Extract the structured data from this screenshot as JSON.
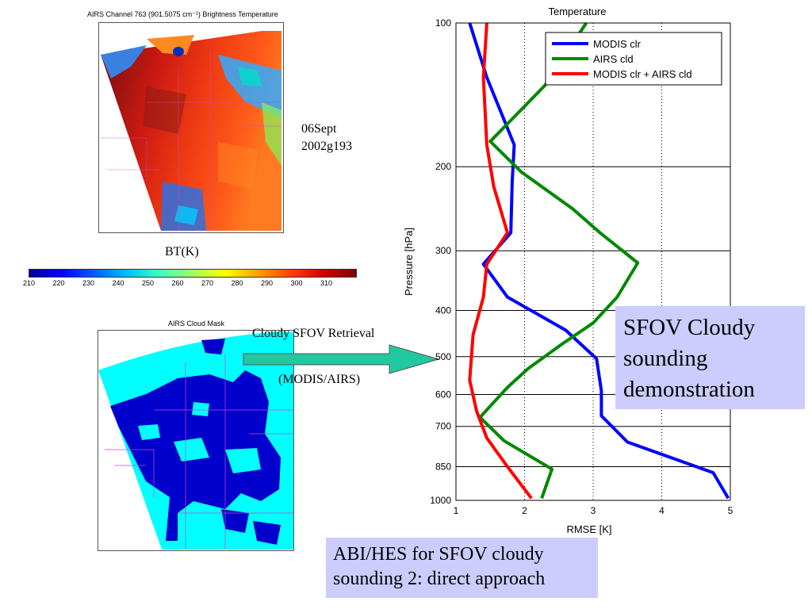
{
  "maps": {
    "bt_title": "AIRS Channel 763 (901.5075 cm⁻¹)   Brightness Temperature",
    "date_line1": "06Sept",
    "date_line2": "2002g193",
    "colorbar_label": "BT(K)",
    "colorbar_ticks": [
      "210",
      "220",
      "230",
      "240",
      "250",
      "260",
      "270",
      "280",
      "290",
      "300",
      "310"
    ],
    "cloud_title": "AIRS Cloud Mask"
  },
  "arrow": {
    "label_top": "Cloudy SFOV Retrieval",
    "label_bottom": "(MODIS/AIRS)"
  },
  "callouts": {
    "right": "SFOV Cloudy sounding demonstration",
    "bottom_line1": "ABI/HES for SFOV cloudy",
    "bottom_line2": "sounding 2: direct approach"
  },
  "colors": {
    "modis_clr": "#0000ff",
    "airs_cld": "#008800",
    "combined": "#ff0000",
    "callout_bg": "#ccccff",
    "arrow_fill": "#22c9a0",
    "cloud_clear": "#00ffff",
    "cloud_cloudy": "#0000cc"
  },
  "chart_data": {
    "type": "line",
    "title": "Temperature",
    "xlabel": "RMSE [K]",
    "ylabel": "Pressure [hPa]",
    "xlim": [
      1,
      5
    ],
    "ylim": [
      100,
      1000
    ],
    "yscale": "log",
    "xticks": [
      1,
      2,
      3,
      4,
      5
    ],
    "yticks": [
      100,
      200,
      300,
      400,
      500,
      600,
      700,
      850,
      1000
    ],
    "grid": true,
    "legend_position": "top-right",
    "series": [
      {
        "name": "MODIS clr",
        "color": "#0000ff",
        "points": [
          [
            1.2,
            100
          ],
          [
            1.45,
            130
          ],
          [
            1.85,
            180
          ],
          [
            1.82,
            215
          ],
          [
            1.8,
            275
          ],
          [
            1.4,
            320
          ],
          [
            1.75,
            375
          ],
          [
            2.6,
            440
          ],
          [
            3.05,
            505
          ],
          [
            3.12,
            590
          ],
          [
            3.12,
            665
          ],
          [
            3.5,
            755
          ],
          [
            4.75,
            875
          ],
          [
            4.97,
            990
          ]
        ]
      },
      {
        "name": "AIRS cld",
        "color": "#008800",
        "points": [
          [
            2.9,
            100
          ],
          [
            2.3,
            135
          ],
          [
            1.5,
            177
          ],
          [
            1.95,
            205
          ],
          [
            2.7,
            245
          ],
          [
            3.1,
            275
          ],
          [
            3.65,
            318
          ],
          [
            3.35,
            375
          ],
          [
            3,
            425
          ],
          [
            2.55,
            470
          ],
          [
            2.05,
            530
          ],
          [
            1.75,
            580
          ],
          [
            1.35,
            670
          ],
          [
            1.7,
            750
          ],
          [
            2.4,
            860
          ],
          [
            2.25,
            990
          ]
        ]
      },
      {
        "name": "MODIS clr + AIRS cld",
        "color": "#ff0000",
        "points": [
          [
            1.45,
            100
          ],
          [
            1.4,
            130
          ],
          [
            1.45,
            180
          ],
          [
            1.55,
            220
          ],
          [
            1.75,
            275
          ],
          [
            1.45,
            320
          ],
          [
            1.4,
            375
          ],
          [
            1.25,
            450
          ],
          [
            1.2,
            560
          ],
          [
            1.3,
            650
          ],
          [
            1.45,
            740
          ],
          [
            1.75,
            850
          ],
          [
            2.1,
            990
          ]
        ]
      }
    ]
  }
}
